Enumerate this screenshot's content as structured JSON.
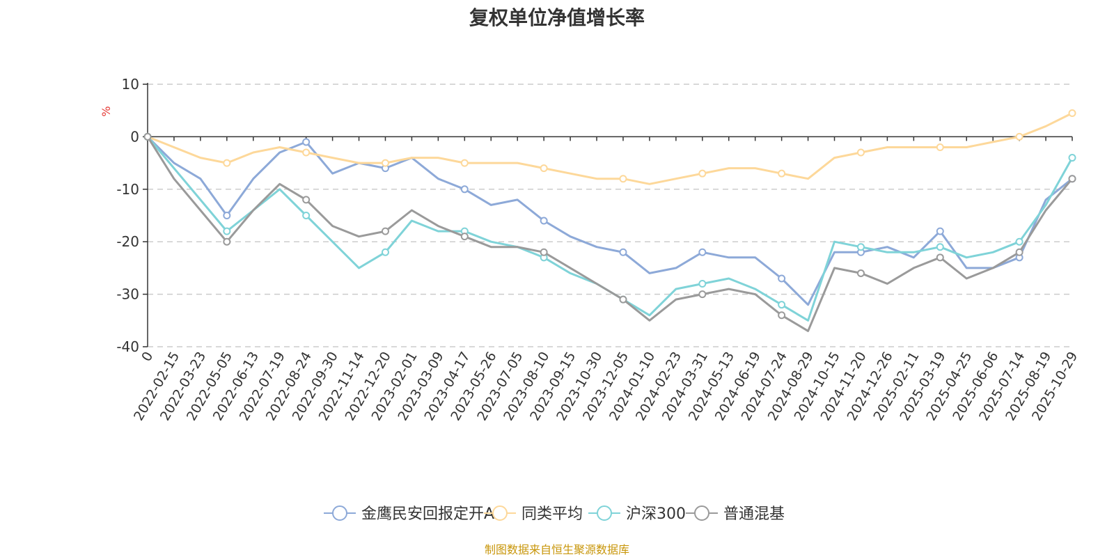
{
  "chart_data": {
    "type": "line",
    "title": "复权单位净值增长率",
    "ylabel": "%",
    "ylim": [
      -40,
      10
    ],
    "yticks": [
      10,
      0,
      -10,
      -20,
      -30,
      -40
    ],
    "grid": true,
    "legend_position": "bottom",
    "x_tick_labels": [
      "0",
      "2022-02-15",
      "2022-03-23",
      "2022-05-05",
      "2022-06-13",
      "2022-07-19",
      "2022-08-24",
      "2022-09-30",
      "2022-11-14",
      "2022-12-20",
      "2023-02-01",
      "2023-03-09",
      "2023-04-17",
      "2023-05-26",
      "2023-07-05",
      "2023-08-10",
      "2023-09-15",
      "2023-10-30",
      "2023-12-05",
      "2024-01-10",
      "2024-02-23",
      "2024-03-31",
      "2024-05-13",
      "2024-06-19",
      "2024-07-24",
      "2024-08-29",
      "2024-10-15",
      "2024-11-20",
      "2024-12-26",
      "2025-02-11",
      "2025-03-19",
      "2025-04-25",
      "2025-06-06",
      "2025-07-14",
      "2025-08-19",
      "2025-10-29"
    ],
    "series": [
      {
        "name": "金鹰民安回报定开A",
        "color": "#8da9d8",
        "values": [
          0,
          -5,
          -8,
          -15,
          -8,
          -3,
          -1,
          -7,
          -5,
          -6,
          -4,
          -8,
          -10,
          -13,
          -12,
          -16,
          -19,
          -21,
          -22,
          -26,
          -25,
          -22,
          -23,
          -23,
          -27,
          -32,
          -22,
          -22,
          -21,
          -23,
          -18,
          -25,
          -25,
          -23,
          -12,
          -8
        ]
      },
      {
        "name": "同类平均",
        "color": "#fdd89a",
        "values": [
          0,
          -2,
          -4,
          -5,
          -3,
          -2,
          -3,
          -4,
          -5,
          -5,
          -4,
          -4,
          -5,
          -5,
          -5,
          -6,
          -7,
          -8,
          -8,
          -9,
          -8,
          -7,
          -6,
          -6,
          -7,
          -8,
          -4,
          -3,
          -2,
          -2,
          -2,
          -2,
          -1,
          0,
          2,
          4.5
        ]
      },
      {
        "name": "沪深300",
        "color": "#7fd3d8",
        "values": [
          0,
          -6,
          -12,
          -18,
          -14,
          -10,
          -15,
          -20,
          -25,
          -22,
          -16,
          -18,
          -18,
          -20,
          -21,
          -23,
          -26,
          -28,
          -31,
          -34,
          -29,
          -28,
          -27,
          -29,
          -32,
          -35,
          -20,
          -21,
          -22,
          -22,
          -21,
          -23,
          -22,
          -20,
          -13,
          -4
        ]
      },
      {
        "name": "普通混基",
        "color": "#9a9a9a",
        "values": [
          0,
          -8,
          -14,
          -20,
          -14,
          -9,
          -12,
          -17,
          -19,
          -18,
          -14,
          -17,
          -19,
          -21,
          -21,
          -22,
          -25,
          -28,
          -31,
          -35,
          -31,
          -30,
          -29,
          -30,
          -34,
          -37,
          -25,
          -26,
          -28,
          -25,
          -23,
          -27,
          -25,
          -22,
          -14,
          -8
        ]
      }
    ]
  },
  "source": "制图数据来自恒生聚源数据库"
}
